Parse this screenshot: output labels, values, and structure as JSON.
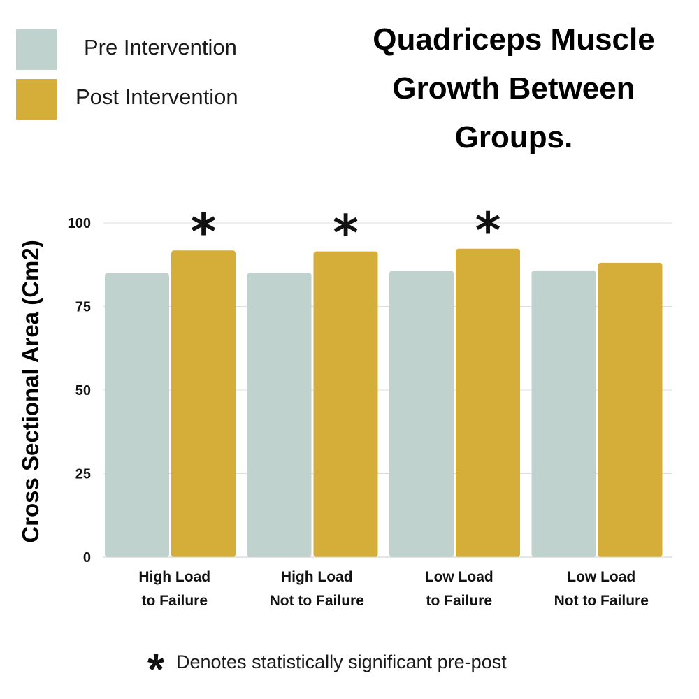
{
  "legend": {
    "items": [
      {
        "label": "Pre Intervention",
        "color": "#c0d2ce"
      },
      {
        "label": "Post Intervention",
        "color": "#d4ae38"
      }
    ]
  },
  "title_lines": [
    "Quadriceps Muscle",
    "Growth Between",
    "Groups."
  ],
  "footnote": {
    "symbol": "*",
    "text": "Denotes statistically significant pre-post"
  },
  "chart_data": {
    "type": "bar",
    "title": "Quadriceps Muscle Growth Between Groups.",
    "ylabel": "Cross Sectional Area (Cm2)",
    "xlabel": "",
    "ylim": [
      0,
      100
    ],
    "yticks": [
      0,
      25,
      50,
      75,
      100
    ],
    "grid": true,
    "legend_position": "top-left",
    "categories": [
      [
        "High Load",
        "to Failure"
      ],
      [
        "High Load",
        "Not to Failure"
      ],
      [
        "Low Load",
        "to Failure"
      ],
      [
        "Low Load",
        "Not to Failure"
      ]
    ],
    "series": [
      {
        "name": "Pre Intervention",
        "color": "#c0d2ce",
        "values": [
          85.0,
          85.1,
          85.7,
          85.8
        ]
      },
      {
        "name": "Post Intervention",
        "color": "#d4ae38",
        "values": [
          91.8,
          91.5,
          92.3,
          88.1
        ]
      }
    ],
    "significance": [
      true,
      true,
      true,
      false
    ],
    "significance_marker": "*"
  }
}
